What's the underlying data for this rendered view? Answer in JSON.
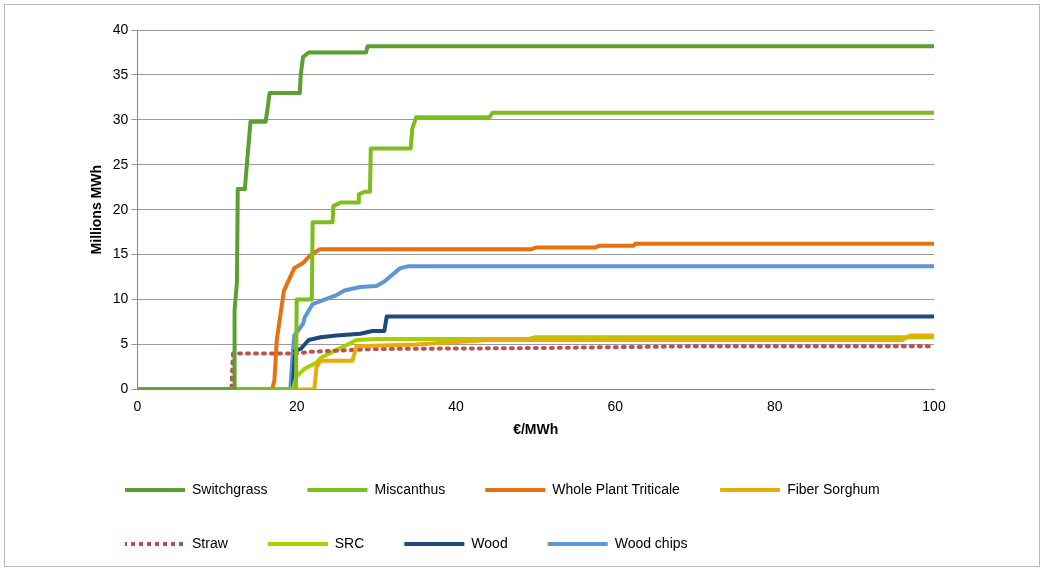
{
  "chart_data": {
    "type": "line",
    "xlabel": "€/MWh",
    "ylabel": "Millions MWh",
    "xlim": [
      0,
      100
    ],
    "xticks": [
      0,
      20,
      40,
      60,
      80,
      100
    ],
    "ylim": [
      0,
      40
    ],
    "yticks": [
      0,
      5,
      10,
      15,
      20,
      25,
      30,
      35,
      40
    ],
    "grid": "y",
    "legend": "bottom",
    "marker": "none",
    "line_style": "solid",
    "series": [
      {
        "name": "Switchgrass",
        "color": "#5ba033",
        "x": [
          0,
          12.2,
          12.2,
          12.5,
          12.6,
          13.5,
          13.6,
          14.2,
          16.1,
          16.3,
          16.6,
          20.4,
          20.5,
          20.8,
          21.5,
          28.7,
          28.9,
          100
        ],
        "values": [
          0,
          0,
          8.8,
          12,
          22.3,
          22.3,
          23.5,
          29.8,
          29.8,
          31,
          33,
          33,
          35,
          37,
          37.5,
          37.5,
          38.2,
          38.2
        ]
      },
      {
        "name": "Miscanthus",
        "color": "#7dbd1c",
        "x": [
          0,
          19.9,
          20,
          21.9,
          22,
          24.5,
          24.6,
          25.5,
          27.7,
          27.8,
          28.5,
          29.2,
          29.3,
          34.3,
          34.5,
          35,
          44.2,
          44.6,
          100
        ],
        "values": [
          0,
          0,
          10,
          10,
          18.6,
          18.6,
          20.4,
          20.8,
          20.8,
          21.7,
          22,
          22,
          26.8,
          26.8,
          29,
          30.3,
          30.3,
          30.8,
          30.8
        ]
      },
      {
        "name": "Whole Plant Triticale",
        "color": "#e8700f",
        "x": [
          0,
          16.9,
          17.2,
          17.5,
          18.4,
          19.7,
          20.7,
          21.8,
          22.9,
          49.5,
          50,
          57.5,
          58,
          62.3,
          62.5,
          100
        ],
        "values": [
          0,
          0,
          1,
          5.5,
          11,
          13.5,
          14,
          15,
          15.6,
          15.6,
          15.8,
          15.8,
          16,
          16,
          16.2,
          16.2
        ]
      },
      {
        "name": "Fiber Sorghum",
        "color": "#e8ab0c",
        "x": [
          0,
          22.2,
          22.5,
          23,
          27,
          27.5,
          35,
          44,
          96,
          97,
          100
        ],
        "values": [
          0,
          0,
          2.5,
          3.2,
          3.2,
          4.8,
          5,
          5.5,
          5.5,
          6,
          6
        ]
      },
      {
        "name": "Straw",
        "color": "#c0504d",
        "line_style": "dotted",
        "x": [
          0,
          11.8,
          12,
          20,
          22,
          30,
          50,
          70,
          100
        ],
        "values": [
          0,
          0,
          4,
          4,
          4.2,
          4.5,
          4.6,
          4.8,
          4.8
        ]
      },
      {
        "name": "SRC",
        "color": "#a8cf00",
        "x": [
          0,
          19.5,
          20,
          21,
          22.5,
          23,
          24.5,
          26,
          27.5,
          30,
          49,
          50,
          100
        ],
        "values": [
          0,
          0,
          1.5,
          2.3,
          3,
          3.5,
          4.2,
          4.8,
          5.5,
          5.6,
          5.6,
          5.8,
          5.8
        ]
      },
      {
        "name": "Wood",
        "color": "#1f497d",
        "x": [
          0,
          19.5,
          19.8,
          20.5,
          21.5,
          23,
          25,
          28,
          29.5,
          31,
          31.3,
          100
        ],
        "values": [
          0,
          0,
          4.3,
          4.5,
          5.5,
          5.8,
          6,
          6.2,
          6.5,
          6.5,
          8.1,
          8.1
        ]
      },
      {
        "name": "Wood chips",
        "color": "#5b96d6",
        "x": [
          0,
          19.2,
          19.5,
          19.7,
          20.8,
          21,
          22,
          23.5,
          25,
          26,
          28,
          30,
          31,
          33,
          34,
          100
        ],
        "values": [
          0,
          0,
          4,
          6,
          7.3,
          8,
          9.5,
          10,
          10.5,
          11,
          11.4,
          11.5,
          12,
          13.5,
          13.7,
          13.7
        ]
      }
    ]
  }
}
